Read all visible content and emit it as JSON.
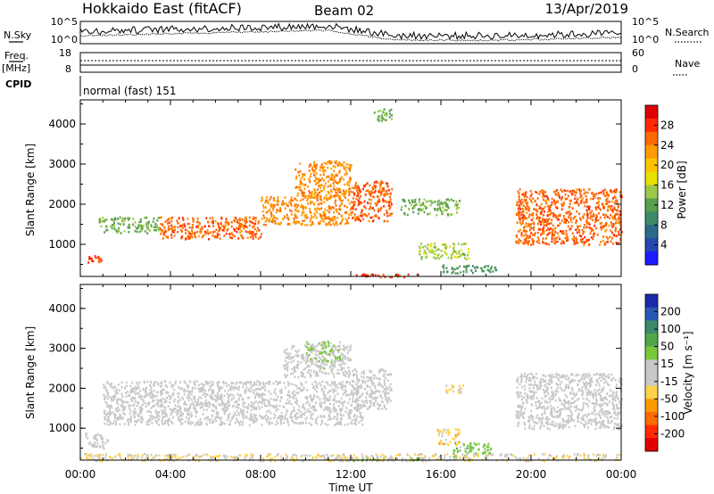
{
  "header": {
    "title": "Hokkaido East (fitACF)",
    "beam": "Beam 02",
    "date": "13/Apr/2019"
  },
  "top_panels": {
    "nsky_label": "N.Sky",
    "nsky_ticks": [
      "10^5",
      "10^0"
    ],
    "nsearch_label": "N.Search",
    "nsearch_ticks": [
      "10^5",
      "10^0"
    ],
    "freq_label_1": "Freq.",
    "freq_label_2": "[MHz]",
    "freq_ticks": [
      "18",
      "8"
    ],
    "nave_label": "Nave",
    "nave_ticks": [
      "60",
      "0"
    ],
    "cpid_label": "CPID",
    "cpid_text": "normal (fast) 151"
  },
  "x_axis": {
    "label": "Time UT",
    "ticks": [
      "00:00",
      "04:00",
      "08:00",
      "12:00",
      "16:00",
      "20:00",
      "00:00"
    ]
  },
  "power_panel": {
    "ylabel": "Slant Range [km]",
    "yticks": [
      "4000",
      "3000",
      "2000",
      "1000"
    ],
    "cbar_label": "Power [dB]",
    "cbar_ticks": [
      "28",
      "24",
      "20",
      "16",
      "12",
      "8",
      "4"
    ],
    "cbar_colors": [
      "#e00000",
      "#ff2a00",
      "#ff6a00",
      "#ff9a00",
      "#ffc400",
      "#e8e000",
      "#9cc84a",
      "#5aa050",
      "#3c8a6a",
      "#2a6a8a",
      "#2446b4",
      "#1c1cff"
    ]
  },
  "velocity_panel": {
    "ylabel": "Slant Range [km]",
    "yticks": [
      "4000",
      "3000",
      "2000",
      "1000"
    ],
    "cbar_label": "Velocity [m s⁻¹]",
    "cbar_ticks": [
      "200",
      "100",
      "50",
      "15",
      "-15",
      "-50",
      "-100",
      "-200"
    ],
    "cbar_colors": [
      "#1c2aa8",
      "#2858b4",
      "#3c8a6a",
      "#50a84a",
      "#78c83c",
      "#c8c8c8",
      "#c8c8c8",
      "#ffd24a",
      "#ff9a00",
      "#ff6a00",
      "#ff2a00",
      "#e00000"
    ]
  },
  "chart_data": [
    {
      "type": "heatmap",
      "title": "Power",
      "xlabel": "Time UT",
      "ylabel": "Slant Range [km]",
      "xlim": [
        0,
        24
      ],
      "ylim": [
        200,
        4600
      ],
      "colorbar_label": "Power [dB]",
      "colorbar_range": [
        0,
        30
      ],
      "regions": [
        {
          "t": [
            0.2,
            0.9
          ],
          "r": [
            550,
            750
          ],
          "value": 26
        },
        {
          "t": [
            0.8,
            3.5
          ],
          "r": [
            1300,
            1700
          ],
          "value": 12
        },
        {
          "t": [
            3.5,
            8.0
          ],
          "r": [
            1150,
            1700
          ],
          "value": 24
        },
        {
          "t": [
            8.0,
            12.0
          ],
          "r": [
            1500,
            2200
          ],
          "value": 22
        },
        {
          "t": [
            9.5,
            12.0
          ],
          "r": [
            2200,
            3100
          ],
          "value": 22
        },
        {
          "t": [
            12.0,
            13.8
          ],
          "r": [
            1600,
            2600
          ],
          "value": 24
        },
        {
          "t": [
            13.0,
            13.8
          ],
          "r": [
            4100,
            4400
          ],
          "value": 12
        },
        {
          "t": [
            14.2,
            16.8
          ],
          "r": [
            1750,
            2150
          ],
          "value": 12
        },
        {
          "t": [
            15.0,
            17.2
          ],
          "r": [
            650,
            1050
          ],
          "value": 14
        },
        {
          "t": [
            16.0,
            18.5
          ],
          "r": [
            300,
            500
          ],
          "value": 10
        },
        {
          "t": [
            19.3,
            24.0
          ],
          "r": [
            1000,
            2400
          ],
          "value": 24
        },
        {
          "t": [
            12.0,
            15.0
          ],
          "r": [
            200,
            280
          ],
          "value": 26
        }
      ]
    },
    {
      "type": "heatmap",
      "title": "Velocity",
      "xlabel": "Time UT",
      "ylabel": "Slant Range [km]",
      "xlim": [
        0,
        24
      ],
      "ylim": [
        200,
        4600
      ],
      "colorbar_label": "Velocity [m s⁻¹]",
      "colorbar_range": [
        -200,
        200
      ],
      "regions": [
        {
          "t": [
            0.2,
            1.2
          ],
          "r": [
            500,
            900
          ],
          "value": 0
        },
        {
          "t": [
            1.0,
            12.5
          ],
          "r": [
            1100,
            2200
          ],
          "value": 0
        },
        {
          "t": [
            9.0,
            12.0
          ],
          "r": [
            2300,
            3100
          ],
          "value": 10
        },
        {
          "t": [
            10.0,
            11.5
          ],
          "r": [
            2700,
            3200
          ],
          "value": 40
        },
        {
          "t": [
            12.0,
            13.8
          ],
          "r": [
            1500,
            2500
          ],
          "value": 0
        },
        {
          "t": [
            16.2,
            17.0
          ],
          "r": [
            1900,
            2100
          ],
          "value": -40
        },
        {
          "t": [
            15.8,
            16.8
          ],
          "r": [
            600,
            1000
          ],
          "value": -50
        },
        {
          "t": [
            16.5,
            18.2
          ],
          "r": [
            300,
            650
          ],
          "value": 50
        },
        {
          "t": [
            19.3,
            24.0
          ],
          "r": [
            1000,
            2400
          ],
          "value": 0
        },
        {
          "t": [
            12.0,
            15.5
          ],
          "r": [
            200,
            280
          ],
          "value": 40
        },
        {
          "t": [
            0.0,
            24.0
          ],
          "r": [
            200,
            380
          ],
          "value": -30
        }
      ]
    }
  ]
}
